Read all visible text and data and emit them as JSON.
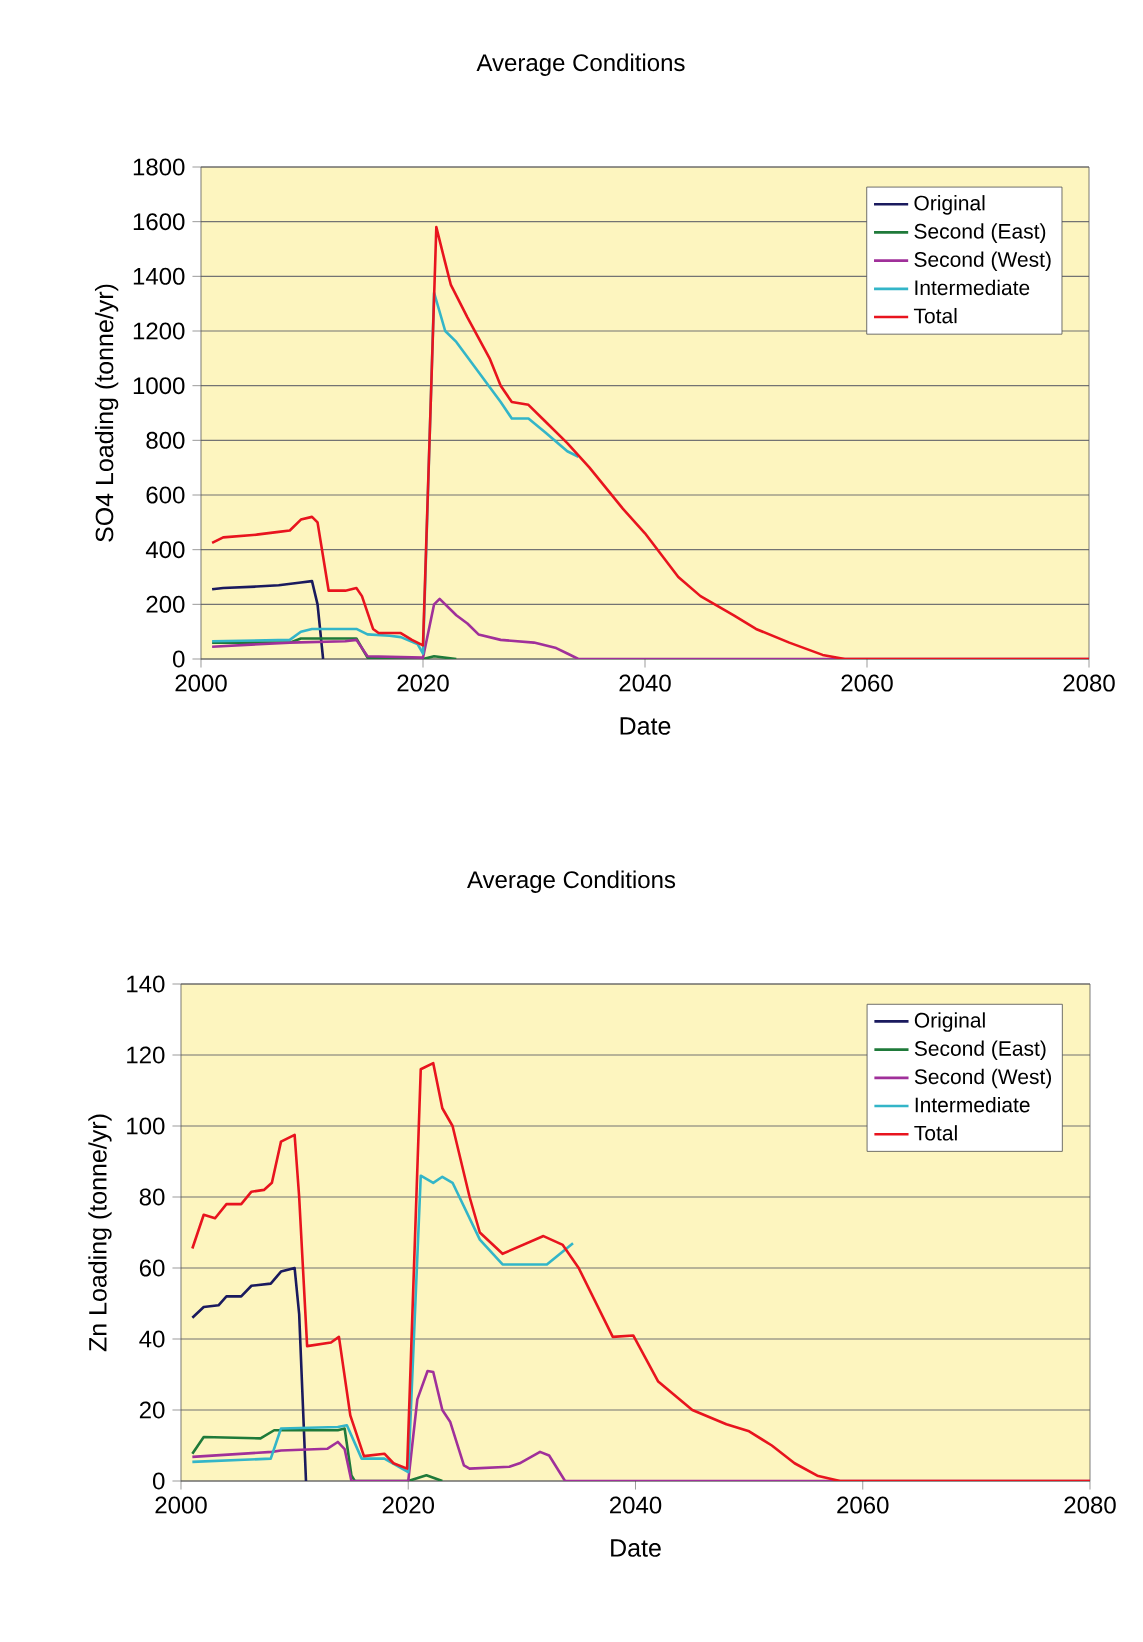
{
  "chart_data": [
    {
      "type": "line",
      "title": "Average Conditions",
      "xlabel": "Date",
      "ylabel": "SO4 Loading (tonne/yr)",
      "xlim": [
        2000,
        2080
      ],
      "ylim": [
        0,
        1800
      ],
      "xticks": [
        2000,
        2020,
        2040,
        2060,
        2080
      ],
      "yticks": [
        0,
        200,
        400,
        600,
        800,
        1000,
        1200,
        1400,
        1600,
        1800
      ],
      "grid": "y",
      "legend": "top right",
      "series": [
        {
          "name": "Original",
          "color": "#1a1a5e",
          "x": [
            2001,
            2002,
            2005,
            2007,
            2009,
            2010,
            2010.5,
            2011
          ],
          "values": [
            255,
            260,
            265,
            270,
            280,
            285,
            200,
            0
          ]
        },
        {
          "name": "Second (East)",
          "color": "#1f7a3a",
          "x": [
            2001,
            2008,
            2009,
            2014,
            2015,
            2020,
            2021,
            2023
          ],
          "values": [
            60,
            60,
            75,
            75,
            5,
            0,
            10,
            0
          ]
        },
        {
          "name": "Second (West)",
          "color": "#a0309a",
          "x": [
            2001,
            2008,
            2013,
            2014,
            2015,
            2020,
            2021,
            2021.5,
            2023,
            2024,
            2025,
            2027,
            2030,
            2032,
            2033,
            2034,
            2080
          ],
          "values": [
            45,
            60,
            65,
            70,
            10,
            5,
            200,
            220,
            160,
            130,
            90,
            70,
            60,
            40,
            20,
            0,
            0
          ]
        },
        {
          "name": "Intermediate",
          "color": "#33b5c8",
          "x": [
            2001,
            2008,
            2009,
            2010,
            2014,
            2015,
            2017,
            2018,
            2019.5,
            2020,
            2021,
            2022,
            2023,
            2025,
            2027,
            2028,
            2029.5,
            2031,
            2033,
            2034
          ],
          "values": [
            65,
            70,
            100,
            110,
            110,
            90,
            85,
            80,
            55,
            20,
            1340,
            1200,
            1160,
            1050,
            940,
            880,
            880,
            830,
            760,
            740
          ]
        },
        {
          "name": "Total",
          "color": "#e8141e",
          "x": [
            2001,
            2002,
            2005,
            2007,
            2008,
            2009,
            2010,
            2010.5,
            2011.5,
            2013,
            2014,
            2014.5,
            2015.5,
            2016,
            2018,
            2019,
            2020,
            2021.2,
            2022,
            2022.5,
            2024,
            2026,
            2027,
            2028,
            2029.5,
            2031,
            2033,
            2035,
            2038,
            2040,
            2043,
            2045,
            2048,
            2050,
            2053,
            2056,
            2058,
            2080
          ],
          "values": [
            425,
            445,
            455,
            465,
            470,
            510,
            520,
            500,
            250,
            250,
            260,
            230,
            110,
            95,
            95,
            70,
            50,
            1580,
            1450,
            1370,
            1250,
            1100,
            1000,
            940,
            930,
            870,
            790,
            700,
            550,
            460,
            300,
            230,
            160,
            110,
            60,
            15,
            0,
            0
          ]
        }
      ]
    },
    {
      "type": "line",
      "title": "Average Conditions",
      "xlabel": "Date",
      "ylabel": "Zn Loading (tonne/yr)",
      "xlim": [
        2000,
        2080
      ],
      "ylim": [
        0,
        140
      ],
      "xticks": [
        2000,
        2020,
        2040,
        2060,
        2080
      ],
      "yticks": [
        0,
        20,
        40,
        60,
        80,
        100,
        120,
        140
      ],
      "grid": "y",
      "legend": "top right",
      "series": [
        {
          "name": "Original",
          "color": "#1a1a5e",
          "x": [
            2001,
            2002,
            2003.3,
            2004,
            2005.3,
            2006.2,
            2007.9,
            2008.8,
            2010,
            2010.4,
            2011
          ],
          "values": [
            46,
            49,
            49.5,
            52,
            52,
            55,
            55.6,
            59,
            60,
            47,
            0
          ]
        },
        {
          "name": "Second (East)",
          "color": "#1f7a3a",
          "x": [
            2001,
            2002,
            2007,
            2008.2,
            2013.8,
            2014.4,
            2015,
            2015.3,
            2020,
            2021.6,
            2023
          ],
          "values": [
            7.7,
            12.4,
            12,
            14.3,
            14.3,
            14.8,
            1.6,
            0,
            0,
            1.6,
            0
          ]
        },
        {
          "name": "Second (West)",
          "color": "#a0309a",
          "x": [
            2001,
            2008,
            2008.8,
            2012.9,
            2013.8,
            2014.4,
            2015,
            2020,
            2020.8,
            2021.7,
            2022.2,
            2023,
            2023.7,
            2024.9,
            2025.4,
            2028.9,
            2029.8,
            2031.6,
            2032.4,
            2033.8,
            2080
          ],
          "values": [
            6.8,
            8.2,
            8.6,
            9.1,
            11,
            9,
            0,
            0,
            23,
            31,
            30.7,
            20,
            16.6,
            4.4,
            3.5,
            4,
            5,
            8.2,
            7.2,
            0,
            0
          ]
        },
        {
          "name": "Intermediate",
          "color": "#33b5c8",
          "x": [
            2001,
            2007.9,
            2008.8,
            2013.8,
            2014.6,
            2015.9,
            2017.9,
            2020,
            2021.1,
            2022.2,
            2023,
            2023.9,
            2026.3,
            2028.3,
            2032.2,
            2034.5
          ],
          "values": [
            5.4,
            6.3,
            14.8,
            15.2,
            15.7,
            6.3,
            6.3,
            2.5,
            86,
            84,
            85.7,
            84,
            68,
            61,
            61,
            67
          ]
        },
        {
          "name": "Total",
          "color": "#e8141e",
          "x": [
            2001,
            2002,
            2003,
            2004,
            2005.3,
            2006.2,
            2007.3,
            2008,
            2008.8,
            2010,
            2010.4,
            2011.1,
            2013.2,
            2013.9,
            2014.9,
            2016.1,
            2017.9,
            2018.7,
            2019.9,
            2021.1,
            2022.2,
            2023,
            2023.9,
            2025.4,
            2026.3,
            2028.3,
            2031.9,
            2033.6,
            2035,
            2038,
            2039.8,
            2042,
            2045,
            2048,
            2050,
            2052,
            2054,
            2056,
            2058,
            2080
          ],
          "values": [
            65.5,
            75,
            74,
            78,
            78,
            81.5,
            82,
            84,
            95.6,
            97.5,
            80,
            38,
            39,
            40.6,
            18.5,
            7,
            7.7,
            5,
            3.5,
            116,
            117.7,
            105,
            100,
            80,
            70,
            64,
            69,
            66.5,
            60,
            40.6,
            41,
            28,
            20,
            16,
            14,
            10,
            5,
            1.5,
            0,
            0
          ]
        }
      ]
    }
  ]
}
